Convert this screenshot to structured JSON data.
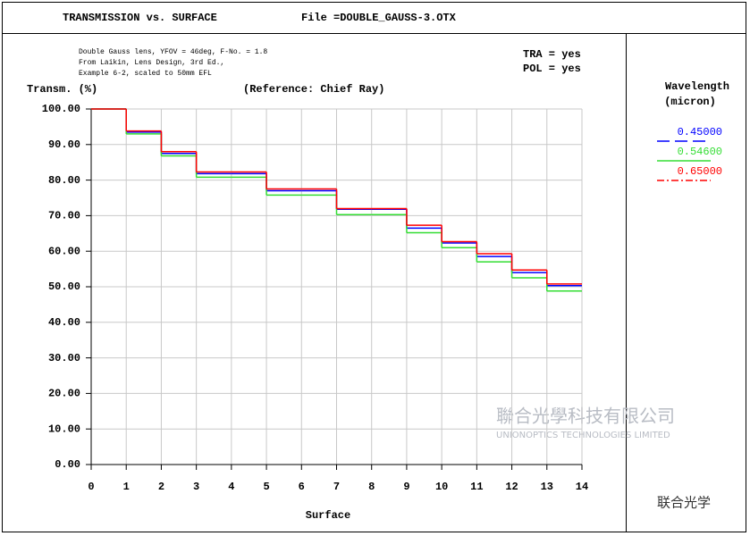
{
  "chart_data": {
    "type": "step",
    "title": "TRANSMISSION vs. SURFACE",
    "file": "File =DOUBLE_GAUSS-3.OTX",
    "notes": [
      "Double Gauss lens, YFOV = 46deg, F-No. = 1.8",
      "From Laikin, Lens Design, 3rd Ed.,",
      "Example 6-2, scaled to 50mm EFL"
    ],
    "flags": [
      "TRA = yes",
      "POL = yes"
    ],
    "y_label": "Transm. (%)",
    "reference": "(Reference: Chief Ray)",
    "x_label": "Surface",
    "legend_title": [
      "Wavelength",
      "(micron)"
    ],
    "watermark": [
      "聯合光學科技有限公司",
      "UNIONOPTICS TECHNOLOGIES LIMITED",
      "联合光学"
    ],
    "x": [
      0,
      1,
      2,
      3,
      4,
      5,
      6,
      7,
      8,
      9,
      10,
      11,
      12,
      13
    ],
    "series": [
      {
        "name": "0.45000",
        "color": "#0000ff",
        "values": [
          100,
          93.5,
          87.5,
          81.8,
          81.8,
          77,
          77,
          71.8,
          71.8,
          66.5,
          62.3,
          58.5,
          54,
          50.3
        ]
      },
      {
        "name": "0.54600",
        "color": "#33dd33",
        "values": [
          100,
          93,
          86.8,
          80.8,
          80.8,
          75.8,
          75.8,
          70.3,
          70.3,
          65.2,
          61,
          57,
          52.5,
          48.8
        ]
      },
      {
        "name": "0.65000",
        "color": "#ff0000",
        "values": [
          100,
          93.8,
          88,
          82.3,
          82.3,
          77.5,
          77.5,
          72,
          72,
          67.3,
          62.7,
          59.3,
          54.7,
          50.8
        ]
      }
    ],
    "xlim": [
      0,
      14
    ],
    "xticks": [
      0,
      1,
      2,
      3,
      4,
      5,
      6,
      7,
      8,
      9,
      10,
      11,
      12,
      13,
      14
    ],
    "ylim": [
      0,
      100
    ],
    "yticks": [
      {
        "value": 0,
        "label": "0.00"
      },
      {
        "value": 10,
        "label": "10.00"
      },
      {
        "value": 20,
        "label": "20.00"
      },
      {
        "value": 30,
        "label": "30.00"
      },
      {
        "value": 40,
        "label": "40.00"
      },
      {
        "value": 50,
        "label": "50.00"
      },
      {
        "value": 60,
        "label": "60.00"
      },
      {
        "value": 70,
        "label": "70.00"
      },
      {
        "value": 80,
        "label": "80.00"
      },
      {
        "value": 90,
        "label": "90.00"
      },
      {
        "value": 100,
        "label": "100.00"
      }
    ],
    "grid": true
  }
}
